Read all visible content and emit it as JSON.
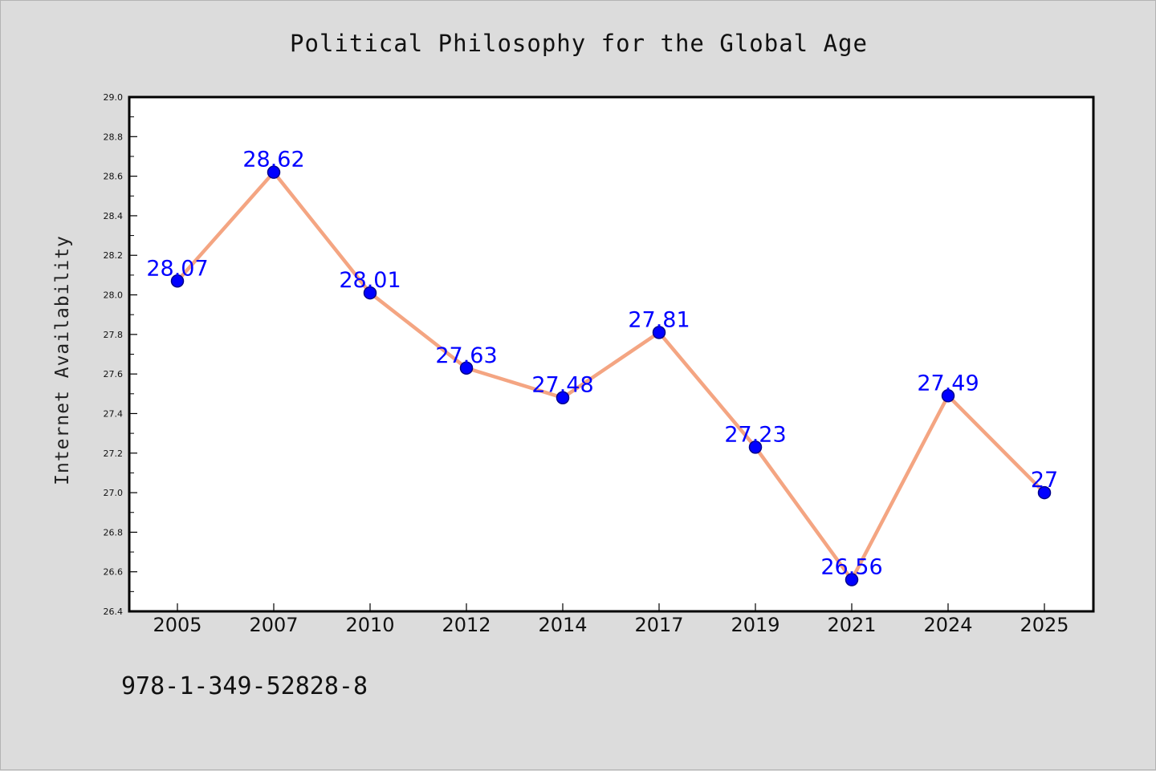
{
  "chart_data": {
    "type": "line",
    "title": "Political Philosophy for the Global Age",
    "xlabel": "",
    "ylabel": "Internet Availability",
    "categories": [
      "2005",
      "2007",
      "2010",
      "2012",
      "2014",
      "2017",
      "2019",
      "2021",
      "2024",
      "2025"
    ],
    "series": [
      {
        "values": [
          28.07,
          28.62,
          28.01,
          27.63,
          27.48,
          27.81,
          27.23,
          26.56,
          27.49,
          27.0
        ],
        "labels": [
          "28.07",
          "28.62",
          "28.01",
          "27.63",
          "27.48",
          "27.81",
          "27.23",
          "26.56",
          "27.49",
          "27"
        ]
      }
    ],
    "ylim": [
      26.4,
      29.0
    ],
    "yticks": [
      "26.4",
      "26.6",
      "26.8",
      "27.0",
      "27.2",
      "27.4",
      "27.6",
      "27.8",
      "28.0",
      "28.2",
      "28.4",
      "28.6",
      "28.8",
      "29.0"
    ],
    "grid": false,
    "legend": "none",
    "colors": {
      "line": "#f4a582",
      "marker": "#0000ff",
      "marker_edge": "#00008b",
      "data_label": "#0000ff",
      "background": "#dcdcdc",
      "plot_background": "#ffffff"
    }
  },
  "footer": {
    "isbn": "978-1-349-52828-8"
  }
}
